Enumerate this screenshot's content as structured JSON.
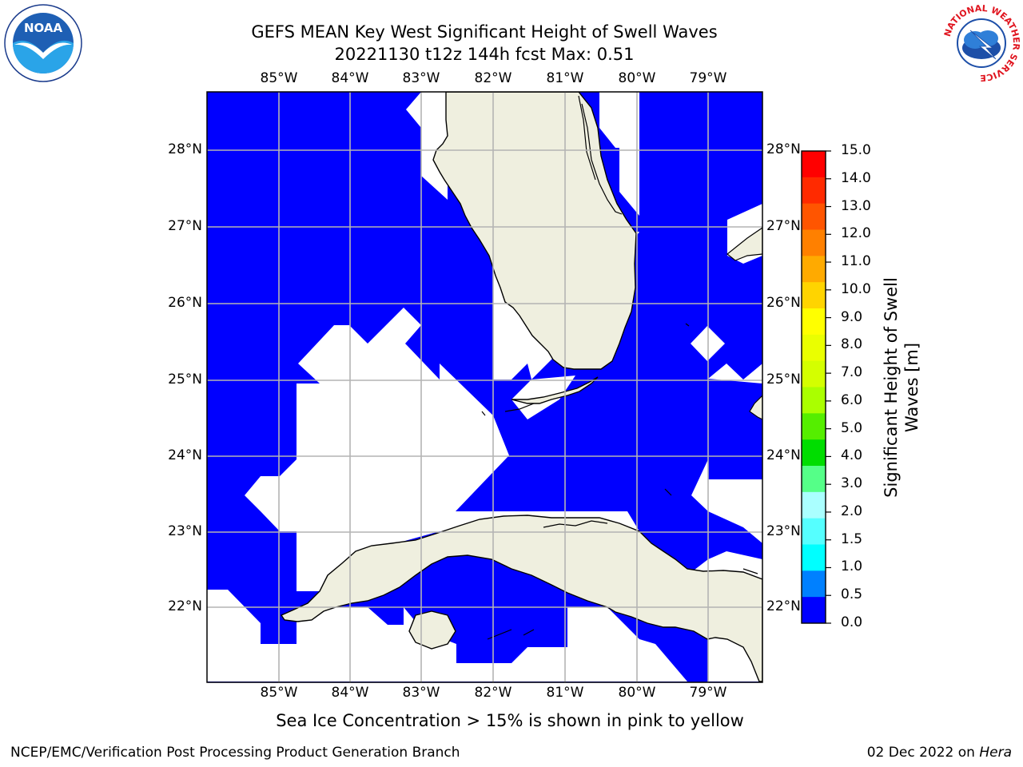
{
  "title_line1": "GEFS MEAN Key West Significant Height of Swell Waves",
  "title_line2": "20221130 t12z 144h fcst   Max: 0.51",
  "lon_labels": [
    "85°W",
    "84°W",
    "83°W",
    "82°W",
    "81°W",
    "80°W",
    "79°W"
  ],
  "lat_labels": [
    "28°N",
    "27°N",
    "26°N",
    "25°N",
    "24°N",
    "23°N",
    "22°N"
  ],
  "colorbar": {
    "title": "Significant Height of Swell Waves [m]",
    "ticks": [
      "15.0",
      "14.0",
      "13.0",
      "12.0",
      "11.0",
      "10.0",
      "9.0",
      "8.0",
      "7.0",
      "6.0",
      "5.0",
      "4.0",
      "3.0",
      "2.0",
      "1.5",
      "1.0",
      "0.5",
      "0.0"
    ],
    "colors": [
      "#ff0000",
      "#ff2a00",
      "#ff5500",
      "#ff8000",
      "#ffaa00",
      "#ffd400",
      "#ffff00",
      "#eaff00",
      "#d4ff00",
      "#aaff00",
      "#55ee00",
      "#00dd00",
      "#55ff88",
      "#aaffff",
      "#55ffff",
      "#00ffff",
      "#0080ff",
      "#0000ff"
    ]
  },
  "colors": {
    "ocean_swell": "#0000ff",
    "land": "#efefdf",
    "grid": "#b4b4b4",
    "nodata": "#ffffff"
  },
  "note": "Sea Ice Concentration > 15% is shown in pink to yellow",
  "footer_left": "NCEP/EMC/Verification Post Processing Product Generation Branch",
  "footer_date": "02 Dec 2022",
  "footer_on": "on",
  "footer_host": "Hera",
  "logos": {
    "noaa": "NOAA",
    "nws": "NATIONAL WEATHER SERVICE"
  }
}
